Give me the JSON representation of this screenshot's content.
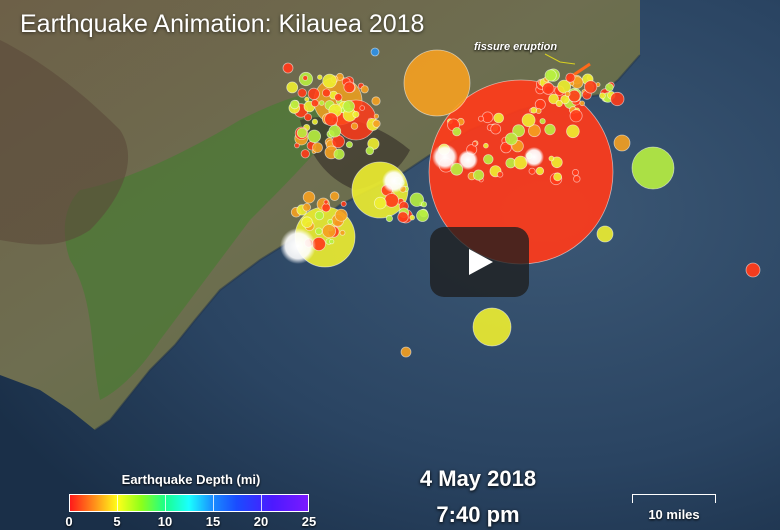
{
  "title": "Earthquake Animation: Kilauea 2018",
  "annotation": "fissure eruption",
  "date": "4 May 2018",
  "time": "7:40 pm",
  "scale_label": "10 miles",
  "legend": {
    "title": "Earthquake Depth (mi)",
    "ticks": [
      "0",
      "5",
      "10",
      "15",
      "20",
      "25"
    ]
  },
  "colors": {
    "ocean": "#2a4563",
    "land": "#6b6b52",
    "vegetation": "#4f7a3a",
    "depth_0": "#ff3b1a",
    "depth_2": "#f5a020",
    "depth_5": "#eeee30",
    "depth_7": "#b8f040",
    "depth_deep": "#2f8fe0"
  },
  "play_button": "play-icon"
}
